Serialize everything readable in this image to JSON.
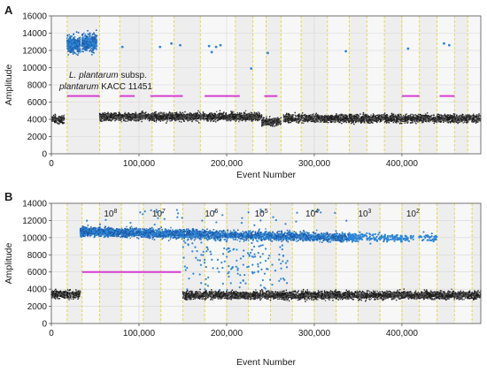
{
  "chart_data": [
    {
      "panel": "A",
      "type": "scatter",
      "xlabel": "Event Number",
      "ylabel": "Amplitude",
      "xlim": [
        0,
        490000
      ],
      "ylim": [
        0,
        16000
      ],
      "xticks": [
        0,
        100000,
        200000,
        300000,
        400000
      ],
      "xtick_labels": [
        "0",
        "100,000",
        "200,000",
        "300,000",
        "400,000"
      ],
      "yticks": [
        0,
        2000,
        4000,
        6000,
        8000,
        10000,
        12000,
        14000,
        16000
      ],
      "ytick_labels": [
        "0",
        "2000",
        "4000",
        "6000",
        "8000",
        "10000",
        "12000",
        "14000",
        "16000"
      ],
      "well_boundaries": [
        18000,
        55000,
        78000,
        115000,
        140000,
        170000,
        210000,
        230000,
        245000,
        262000,
        285000,
        315000,
        340000,
        360000,
        380000,
        400000,
        420000,
        440000,
        460000,
        475000
      ],
      "threshold_segments": [
        {
          "x": [
            18000,
            55000
          ],
          "y": 6700
        },
        {
          "x": [
            78000,
            95000
          ],
          "y": 6700
        },
        {
          "x": [
            113000,
            150000
          ],
          "y": 6700
        },
        {
          "x": [
            175000,
            215000
          ],
          "y": 6700
        },
        {
          "x": [
            243000,
            258000
          ],
          "y": 6700
        },
        {
          "x": [
            400000,
            420000
          ],
          "y": 6700
        },
        {
          "x": [
            443000,
            460000
          ],
          "y": 6700
        }
      ],
      "negative_clusters": [
        {
          "x": [
            0,
            15000
          ],
          "y": 4000
        },
        {
          "x": [
            55000,
            240000
          ],
          "y": 4300
        },
        {
          "x": [
            240000,
            262000
          ],
          "y": 3700
        },
        {
          "x": [
            265000,
            490000
          ],
          "y": 4100
        }
      ],
      "positive_clusters": [
        {
          "x": [
            18000,
            33000
          ],
          "y": 12700
        },
        {
          "x": [
            35000,
            52000
          ],
          "y": 12900
        }
      ],
      "scattered_points": [
        {
          "x": 81000,
          "y": 12400
        },
        {
          "x": 124000,
          "y": 12400
        },
        {
          "x": 137000,
          "y": 12800
        },
        {
          "x": 147000,
          "y": 12600
        },
        {
          "x": 180000,
          "y": 12500
        },
        {
          "x": 183000,
          "y": 11800
        },
        {
          "x": 188000,
          "y": 12400
        },
        {
          "x": 193000,
          "y": 12600
        },
        {
          "x": 228000,
          "y": 9900
        },
        {
          "x": 247000,
          "y": 11700
        },
        {
          "x": 336000,
          "y": 11900
        },
        {
          "x": 407000,
          "y": 12200
        },
        {
          "x": 448000,
          "y": 12800
        },
        {
          "x": 454000,
          "y": 12600
        }
      ],
      "annotation": {
        "italic_1": "L. plantarum",
        "text_1": " subsp.",
        "italic_2": "plantarum",
        "text_2": " KACC 11451"
      }
    },
    {
      "panel": "B",
      "type": "scatter",
      "xlabel": "Event Number",
      "ylabel": "Amplitude",
      "xlim": [
        0,
        490000
      ],
      "ylim": [
        0,
        14000
      ],
      "xticks": [
        0,
        100000,
        200000,
        300000,
        400000
      ],
      "xtick_labels": [
        "0",
        "100,000",
        "200,000",
        "300,000",
        "400,000"
      ],
      "yticks": [
        0,
        2000,
        4000,
        6000,
        8000,
        10000,
        12000,
        14000
      ],
      "ytick_labels": [
        "0",
        "2000",
        "4000",
        "6000",
        "8000",
        "10000",
        "12000",
        "14000"
      ],
      "well_boundaries": [
        18000,
        35000,
        55000,
        80000,
        105000,
        125000,
        150000,
        175000,
        200000,
        225000,
        250000,
        275000,
        300000,
        325000,
        350000,
        375000,
        400000,
        420000,
        440000,
        460000,
        480000
      ],
      "threshold_segments": [
        {
          "x": [
            35000,
            148000
          ],
          "y": 6000
        }
      ],
      "dilution_labels": [
        {
          "base": "10",
          "exp": "8",
          "x": 60000
        },
        {
          "base": "10",
          "exp": "7",
          "x": 115000
        },
        {
          "base": "10",
          "exp": "6",
          "x": 175000
        },
        {
          "base": "10",
          "exp": "5",
          "x": 232000
        },
        {
          "base": "10",
          "exp": "4",
          "x": 290000
        },
        {
          "base": "10",
          "exp": "3",
          "x": 350000
        },
        {
          "base": "10",
          "exp": "2",
          "x": 405000
        }
      ],
      "negative_clusters": [
        {
          "x": [
            0,
            33000
          ],
          "y": 3400
        },
        {
          "x": [
            150000,
            490000
          ],
          "y": 3300
        }
      ],
      "positive_band": {
        "x": [
          33000,
          340000
        ],
        "y_start": 10700,
        "y_end": 10000
      },
      "sparse_positive": {
        "x": [
          340000,
          440000
        ],
        "y": 10000
      }
    }
  ]
}
